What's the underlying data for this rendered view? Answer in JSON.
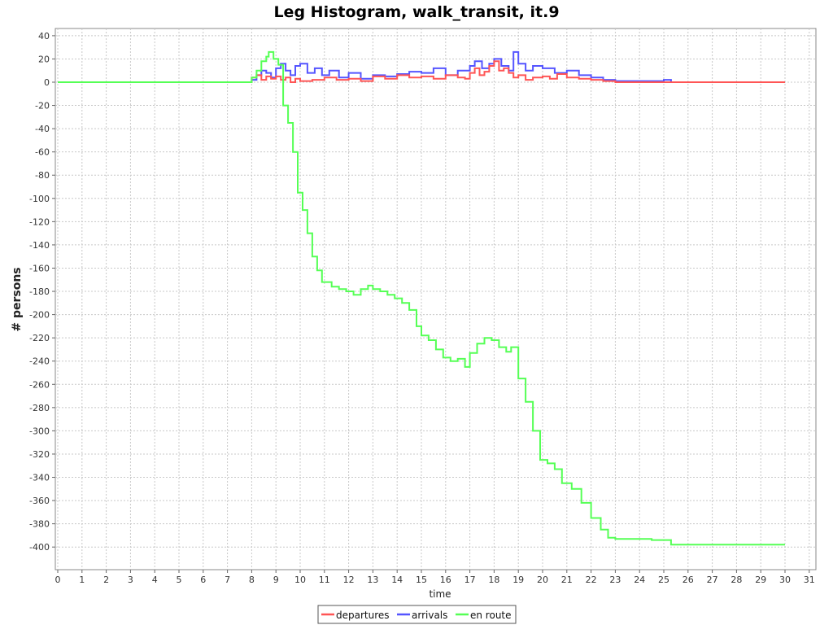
{
  "chart_data": {
    "type": "line",
    "title": "Leg Histogram, walk_transit, it.9",
    "xlabel": "time",
    "ylabel": "# persons",
    "xlim": [
      0,
      31.5
    ],
    "ylim": [
      -420,
      45
    ],
    "x_ticks": [
      0,
      1,
      2,
      3,
      4,
      5,
      6,
      7,
      8,
      9,
      10,
      11,
      12,
      13,
      14,
      15,
      16,
      17,
      18,
      19,
      20,
      21,
      22,
      23,
      24,
      25,
      26,
      27,
      28,
      29,
      30,
      31
    ],
    "y_ticks": [
      40,
      20,
      0,
      -20,
      -40,
      -60,
      -80,
      -100,
      -120,
      -140,
      -160,
      -180,
      -200,
      -220,
      -240,
      -260,
      -280,
      -300,
      -320,
      -340,
      -360,
      -380,
      -400
    ],
    "grid": true,
    "legend_position": "bottom",
    "series": [
      {
        "name": "departures",
        "color": "#ff5555",
        "x": [
          0,
          7.9,
          8.0,
          8.2,
          8.4,
          8.6,
          8.8,
          9.0,
          9.2,
          9.4,
          9.6,
          9.8,
          10.0,
          10.5,
          11.0,
          11.5,
          12.0,
          12.5,
          13.0,
          13.5,
          14.0,
          14.5,
          15.0,
          15.5,
          16.0,
          16.5,
          16.8,
          17.0,
          17.2,
          17.4,
          17.6,
          17.8,
          18.0,
          18.2,
          18.4,
          18.6,
          18.8,
          19.0,
          19.3,
          19.6,
          20.0,
          20.3,
          20.6,
          21.0,
          21.5,
          22.0,
          22.5,
          23.0,
          24.0,
          25.0,
          30.0
        ],
        "values": [
          0,
          0,
          4,
          6,
          2,
          5,
          3,
          5,
          2,
          4,
          0,
          3,
          1,
          2,
          4,
          2,
          3,
          1,
          5,
          3,
          6,
          4,
          5,
          3,
          6,
          4,
          3,
          8,
          12,
          6,
          9,
          14,
          18,
          10,
          12,
          8,
          4,
          6,
          2,
          4,
          5,
          3,
          7,
          4,
          3,
          2,
          1,
          0,
          0,
          0,
          0
        ]
      },
      {
        "name": "arrivals",
        "color": "#5555ff",
        "x": [
          0,
          7.9,
          8.0,
          8.2,
          8.4,
          8.6,
          8.8,
          9.0,
          9.2,
          9.4,
          9.6,
          9.8,
          10.0,
          10.3,
          10.6,
          10.9,
          11.2,
          11.6,
          12.0,
          12.5,
          13.0,
          13.5,
          14.0,
          14.5,
          15.0,
          15.5,
          16.0,
          16.5,
          17.0,
          17.2,
          17.5,
          17.8,
          18.0,
          18.3,
          18.6,
          18.8,
          19.0,
          19.3,
          19.6,
          20.0,
          20.5,
          21.0,
          21.5,
          22.0,
          22.5,
          23.0,
          23.5,
          24.0,
          24.5,
          25.0,
          25.3,
          30.0
        ],
        "values": [
          0,
          0,
          2,
          6,
          10,
          8,
          4,
          12,
          16,
          10,
          6,
          14,
          16,
          8,
          12,
          6,
          10,
          4,
          8,
          3,
          6,
          5,
          7,
          9,
          8,
          12,
          6,
          10,
          14,
          18,
          12,
          16,
          20,
          14,
          10,
          26,
          16,
          10,
          14,
          12,
          8,
          10,
          6,
          4,
          2,
          1,
          1,
          1,
          1,
          2,
          0,
          0
        ]
      },
      {
        "name": "en route",
        "color": "#55ff55",
        "x": [
          0,
          7.9,
          8.0,
          8.2,
          8.4,
          8.6,
          8.7,
          8.9,
          9.1,
          9.3,
          9.5,
          9.7,
          9.9,
          10.1,
          10.3,
          10.5,
          10.7,
          10.9,
          11.0,
          11.3,
          11.6,
          11.9,
          12.2,
          12.5,
          12.8,
          13.0,
          13.3,
          13.6,
          13.9,
          14.2,
          14.5,
          14.8,
          15.0,
          15.3,
          15.6,
          15.9,
          16.2,
          16.5,
          16.8,
          17.0,
          17.3,
          17.6,
          17.9,
          18.2,
          18.5,
          18.7,
          19.0,
          19.3,
          19.6,
          19.9,
          20.2,
          20.5,
          20.8,
          21.2,
          21.6,
          22.0,
          22.4,
          22.7,
          23.0,
          23.5,
          24.0,
          24.5,
          25.0,
          25.3,
          26.0,
          27.0,
          28.0,
          29.0,
          30.0
        ],
        "values": [
          0,
          0,
          4,
          10,
          18,
          22,
          26,
          20,
          15,
          -20,
          -35,
          -60,
          -95,
          -110,
          -130,
          -150,
          -162,
          -172,
          -172,
          -176,
          -178,
          -180,
          -183,
          -178,
          -175,
          -178,
          -180,
          -183,
          -186,
          -190,
          -196,
          -210,
          -218,
          -222,
          -230,
          -237,
          -240,
          -238,
          -245,
          -233,
          -225,
          -220,
          -222,
          -228,
          -232,
          -228,
          -255,
          -275,
          -300,
          -325,
          -328,
          -333,
          -345,
          -350,
          -362,
          -375,
          -385,
          -392,
          -393,
          -393,
          -393,
          -394,
          -394,
          -398,
          -398,
          -398,
          -398,
          -398,
          -398
        ]
      }
    ]
  }
}
